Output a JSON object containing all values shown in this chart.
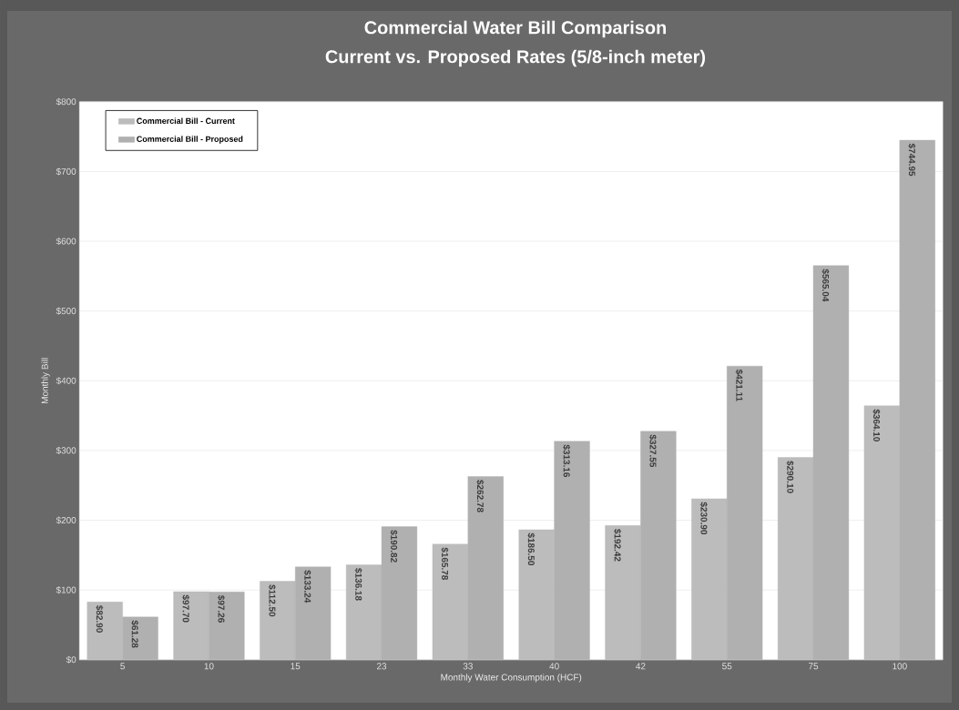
{
  "chart_data": {
    "type": "bar",
    "title": "Commercial Water Bill Comparison",
    "subtitle": "Current vs. Proposed  Rates (5/8-inch meter)",
    "xlabel": "Monthly Water Consumption (HCF)",
    "ylabel": "Monthly Bill",
    "categories": [
      "5",
      "10",
      "15",
      "23",
      "33",
      "40",
      "42",
      "55",
      "75",
      "100"
    ],
    "series": [
      {
        "name": "Commercial Bill - Current",
        "color": "#bcbcbc",
        "values": [
          82.9,
          97.7,
          112.5,
          136.18,
          165.78,
          186.5,
          192.42,
          230.9,
          290.1,
          364.1
        ],
        "value_labels": [
          "$82.90",
          "$97.70",
          "$112.50",
          "$136.18",
          "$165.78",
          "$186.50",
          "$192.42",
          "$230.90",
          "$290.10",
          "$364.10"
        ]
      },
      {
        "name": "Commercial Bill - Proposed",
        "color": "#b0b0b0",
        "values": [
          61.28,
          97.26,
          133.24,
          190.82,
          262.78,
          313.16,
          327.55,
          421.11,
          565.04,
          744.95
        ],
        "value_labels": [
          "$61.28",
          "$97.26",
          "$133.24",
          "$190.82",
          "$262.78",
          "$313.16",
          "$327.55",
          "$421.11",
          "$565.04",
          "$744.95"
        ]
      }
    ],
    "ylim": [
      0,
      800
    ],
    "yticks": [
      {
        "value": 0,
        "label": "$0"
      },
      {
        "value": 100,
        "label": "$100"
      },
      {
        "value": 200,
        "label": "$200"
      },
      {
        "value": 300,
        "label": "$300"
      },
      {
        "value": 400,
        "label": "$400"
      },
      {
        "value": 500,
        "label": "$500"
      },
      {
        "value": 600,
        "label": "$600"
      },
      {
        "value": 700,
        "label": "$700"
      },
      {
        "value": 800,
        "label": "$800"
      }
    ],
    "grid": "y",
    "legend": "top left"
  }
}
